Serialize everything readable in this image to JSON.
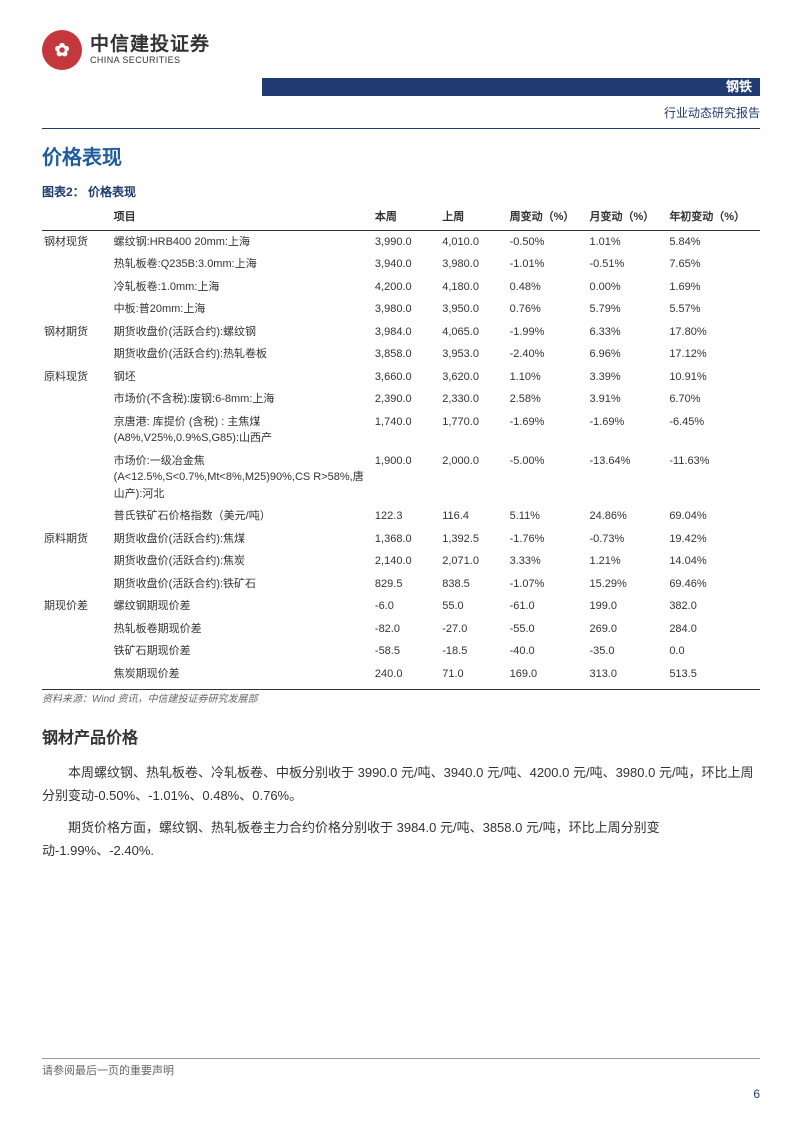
{
  "header": {
    "logo_cn": "中信建投证券",
    "logo_en": "CHINA SECURITIES",
    "logo_glyph": "✿",
    "category": "钢铁",
    "subtitle": "行业动态研究报告"
  },
  "section1": {
    "title": "价格表现",
    "figure_caption": "图表2：  价格表现",
    "columns": [
      "项目",
      "本周",
      "上周",
      "周变动（%）",
      "月变动（%）",
      "年初变动（%）"
    ],
    "groups": [
      {
        "name": "钢材现货",
        "rows": [
          {
            "item": "螺纹钢:HRB400 20mm:上海",
            "v": [
              "3,990.0",
              "4,010.0",
              "-0.50%",
              "1.01%",
              "5.84%"
            ]
          },
          {
            "item": "热轧板卷:Q235B:3.0mm:上海",
            "v": [
              "3,940.0",
              "3,980.0",
              "-1.01%",
              "-0.51%",
              "7.65%"
            ]
          },
          {
            "item": "冷轧板卷:1.0mm:上海",
            "v": [
              "4,200.0",
              "4,180.0",
              "0.48%",
              "0.00%",
              "1.69%"
            ]
          },
          {
            "item": "中板:普20mm:上海",
            "v": [
              "3,980.0",
              "3,950.0",
              "0.76%",
              "5.79%",
              "5.57%"
            ]
          }
        ]
      },
      {
        "name": "钢材期货",
        "rows": [
          {
            "item": "期货收盘价(活跃合约):螺纹钢",
            "v": [
              "3,984.0",
              "4,065.0",
              "-1.99%",
              "6.33%",
              "17.80%"
            ]
          },
          {
            "item": "期货收盘价(活跃合约):热轧卷板",
            "v": [
              "3,858.0",
              "3,953.0",
              "-2.40%",
              "6.96%",
              "17.12%"
            ]
          }
        ]
      },
      {
        "name": "原料现货",
        "rows": [
          {
            "item": "钢坯",
            "v": [
              "3,660.0",
              "3,620.0",
              "1.10%",
              "3.39%",
              "10.91%"
            ]
          },
          {
            "item": "市场价(不含税):废钢:6-8mm:上海",
            "v": [
              "2,390.0",
              "2,330.0",
              "2.58%",
              "3.91%",
              "6.70%"
            ]
          },
          {
            "item": "京唐港: 库提价 (含税) : 主焦煤 (A8%,V25%,0.9%S,G85):山西产",
            "v": [
              "1,740.0",
              "1,770.0",
              "-1.69%",
              "-1.69%",
              "-6.45%"
            ]
          },
          {
            "item": "市场价:一级冶金焦 (A<12.5%,S<0.7%,Mt<8%,M25)90%,CS R>58%,唐山产):河北",
            "v": [
              "1,900.0",
              "2,000.0",
              "-5.00%",
              "-13.64%",
              "-11.63%"
            ]
          },
          {
            "item": "普氏铁矿石价格指数（美元/吨）",
            "v": [
              "122.3",
              "116.4",
              "5.11%",
              "24.86%",
              "69.04%"
            ]
          }
        ]
      },
      {
        "name": "原料期货",
        "rows": [
          {
            "item": "期货收盘价(活跃合约):焦煤",
            "v": [
              "1,368.0",
              "1,392.5",
              "-1.76%",
              "-0.73%",
              "19.42%"
            ]
          },
          {
            "item": "期货收盘价(活跃合约):焦炭",
            "v": [
              "2,140.0",
              "2,071.0",
              "3.33%",
              "1.21%",
              "14.04%"
            ]
          },
          {
            "item": "期货收盘价(活跃合约):铁矿石",
            "v": [
              "829.5",
              "838.5",
              "-1.07%",
              "15.29%",
              "69.46%"
            ]
          }
        ]
      },
      {
        "name": "期现价差",
        "rows": [
          {
            "item": "螺纹钢期现价差",
            "v": [
              "-6.0",
              "55.0",
              "-61.0",
              "199.0",
              "382.0"
            ]
          },
          {
            "item": "热轧板卷期现价差",
            "v": [
              "-82.0",
              "-27.0",
              "-55.0",
              "269.0",
              "284.0"
            ]
          },
          {
            "item": "铁矿石期现价差",
            "v": [
              "-58.5",
              "-18.5",
              "-40.0",
              "-35.0",
              "0.0"
            ]
          },
          {
            "item": "焦炭期现价差",
            "v": [
              "240.0",
              "71.0",
              "169.0",
              "313.0",
              "513.5"
            ]
          }
        ]
      }
    ],
    "source": "资料来源：Wind 资讯，中信建投证券研究发展部"
  },
  "section2": {
    "title": "钢材产品价格",
    "para1": "本周螺纹钢、热轧板卷、冷轧板卷、中板分别收于 3990.0 元/吨、3940.0 元/吨、4200.0 元/吨、3980.0 元/吨，环比上周分别变动-0.50%、-1.01%、0.48%、0.76%。",
    "para2": "期货价格方面，螺纹钢、热轧板卷主力合约价格分别收于 3984.0 元/吨、3858.0 元/吨，环比上周分别变动-1.99%、-2.40%."
  },
  "footer": {
    "note": "请参阅最后一页的重要声明",
    "page": "6"
  },
  "colors": {
    "brand_blue": "#1f3b70",
    "section_blue": "#1f5c9e",
    "logo_red": "#c4373d"
  }
}
